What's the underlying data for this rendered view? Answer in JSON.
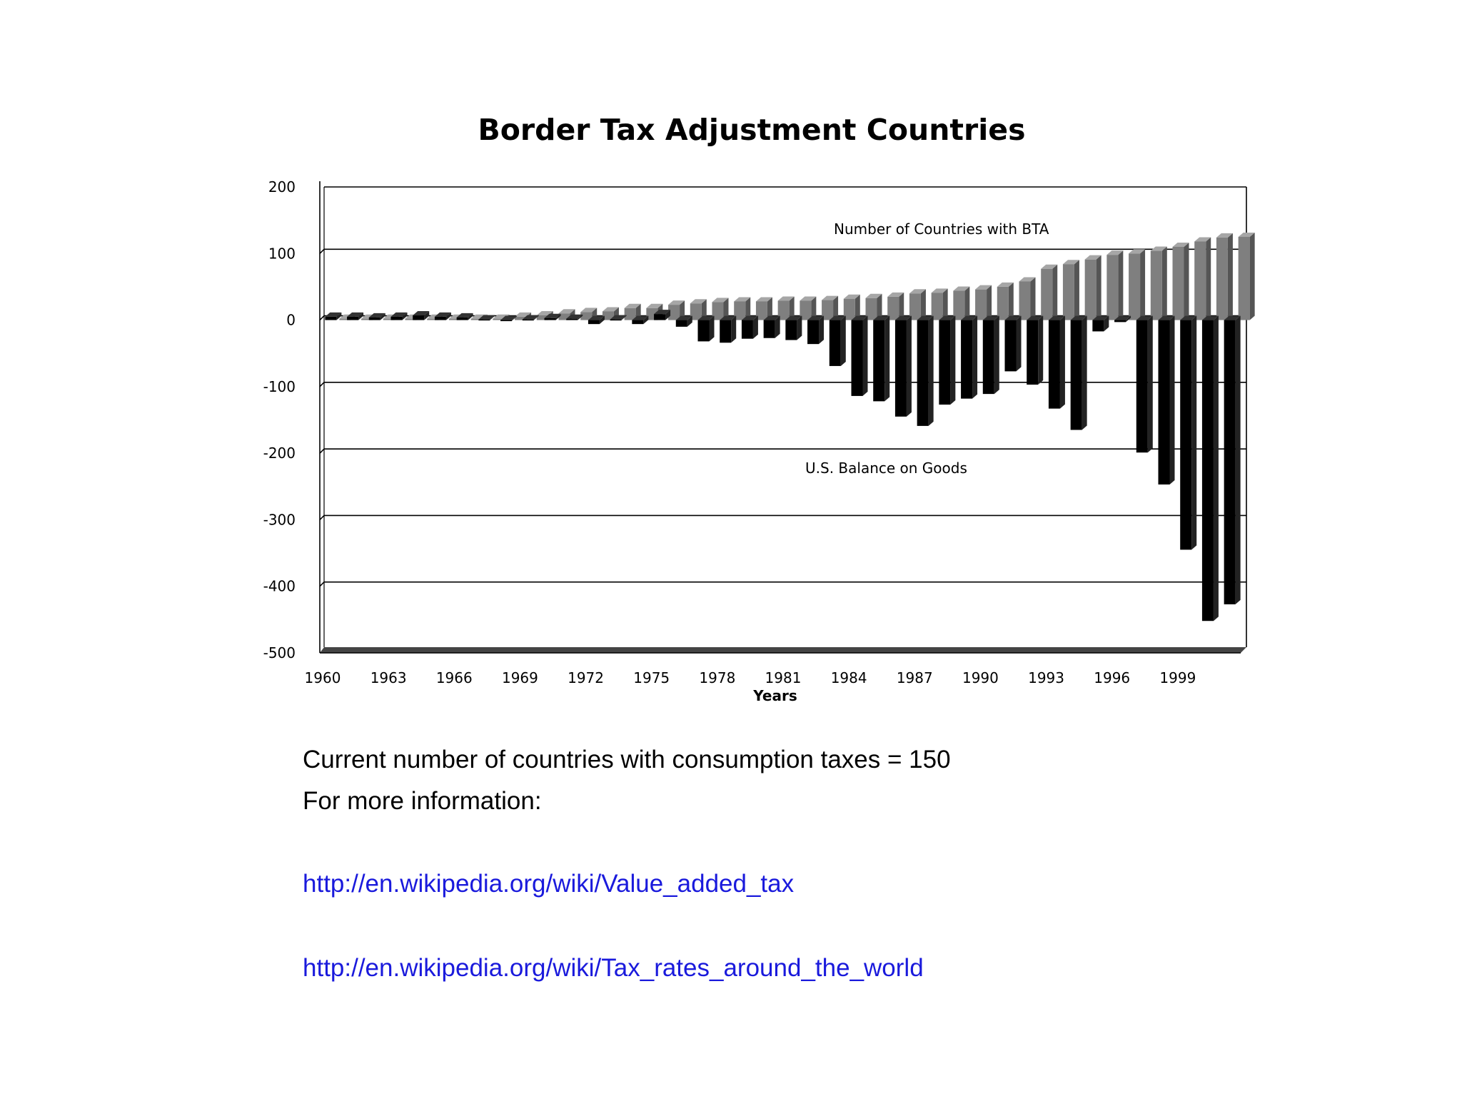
{
  "chart_data": {
    "type": "bar",
    "title": "Border Tax Adjustment Countries",
    "xlabel": "Years",
    "ylabel": "",
    "ylim": [
      -500,
      200
    ],
    "yticks": [
      200,
      100,
      0,
      -100,
      -200,
      -300,
      -400,
      -500
    ],
    "x_tick_labels": [
      "1960",
      "1963",
      "1966",
      "1969",
      "1972",
      "1975",
      "1978",
      "1981",
      "1984",
      "1987",
      "1990",
      "1993",
      "1996",
      "1999"
    ],
    "x": [
      1960,
      1961,
      1962,
      1963,
      1964,
      1965,
      1966,
      1967,
      1968,
      1969,
      1970,
      1971,
      1972,
      1973,
      1974,
      1975,
      1976,
      1977,
      1978,
      1979,
      1980,
      1981,
      1982,
      1983,
      1984,
      1985,
      1986,
      1987,
      1988,
      1989,
      1990,
      1991,
      1992,
      1993,
      1994,
      1995,
      1996,
      1997,
      1998,
      1999,
      2000,
      2001
    ],
    "grid": true,
    "annotations": [
      "Number of Countries with BTA",
      "U.S. Balance on Goods"
    ],
    "series": [
      {
        "color": "#7f7f7f",
        "values": [
          2,
          2,
          2,
          2,
          2,
          2,
          2,
          2,
          5,
          7,
          10,
          12,
          13,
          18,
          18,
          23,
          25,
          27,
          28,
          28,
          29,
          29,
          30,
          32,
          33,
          35,
          40,
          41,
          44,
          46,
          50,
          58,
          77,
          84,
          91,
          98,
          100,
          104,
          110,
          118,
          124,
          125
        ]
      },
      {
        "color": "#000000",
        "values": [
          5,
          5,
          4,
          5,
          7,
          5,
          4,
          1,
          -1,
          1,
          3,
          2,
          -6,
          1,
          -6,
          9,
          -10,
          -32,
          -34,
          -28,
          -27,
          -30,
          -36,
          -69,
          -114,
          -122,
          -145,
          -159,
          -127,
          -118,
          -111,
          -77,
          -97,
          -133,
          -165,
          -17,
          -3,
          -199,
          -247,
          -345,
          -452,
          -427
        ]
      }
    ]
  },
  "notes": {
    "line1": "Current number of countries with consumption taxes = 150",
    "line2": "For more information:",
    "link1": "http://en.wikipedia.org/wiki/Value_added_tax",
    "link2": "http://en.wikipedia.org/wiki/Tax_rates_around_the_world"
  }
}
